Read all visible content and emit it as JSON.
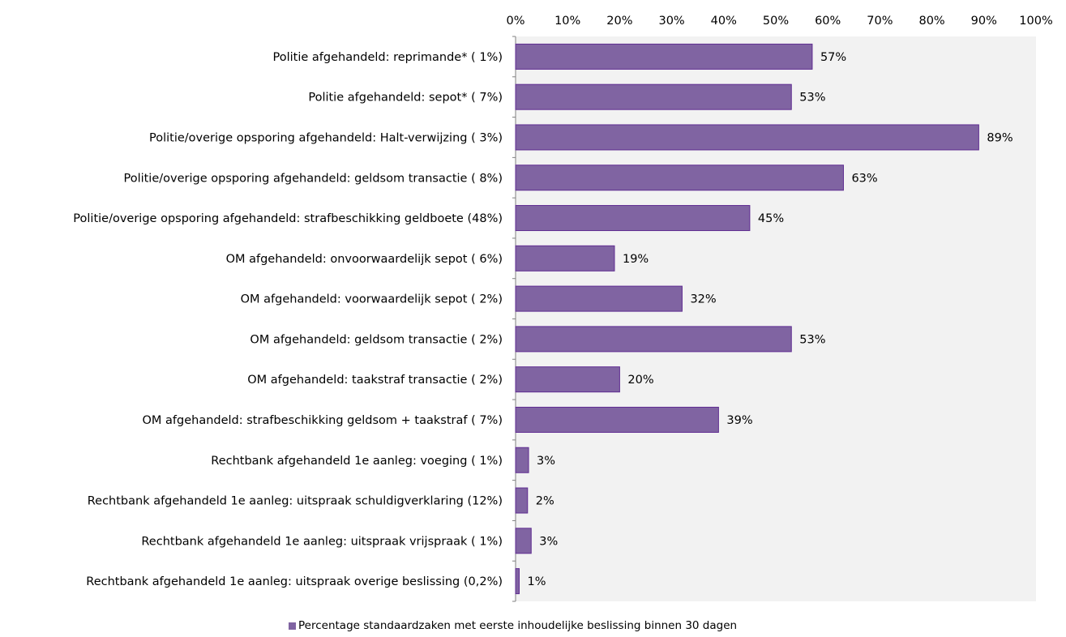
{
  "chart_data": {
    "type": "bar",
    "orientation": "horizontal",
    "title": "",
    "xlabel": "",
    "ylabel": "",
    "xlim": [
      0,
      100
    ],
    "x_ticks": [
      "0%",
      "10%",
      "20%",
      "30%",
      "40%",
      "50%",
      "60%",
      "70%",
      "80%",
      "90%",
      "100%"
    ],
    "x_axis_position": "top",
    "grid": false,
    "plot_background": "#f2f2f2",
    "bar_color": "#8064a2",
    "bar_border_color": "#5f2c91",
    "legend_position": "bottom",
    "categories": [
      "Politie afgehandeld: reprimande* ( 1%)",
      "Politie afgehandeld: sepot* ( 7%)",
      "Politie/overige opsporing afgehandeld: Halt-verwijzing ( 3%)",
      "Politie/overige opsporing afgehandeld: geldsom transactie ( 8%)",
      "Politie/overige opsporing afgehandeld: strafbeschikking geldboete (48%)",
      "OM afgehandeld: onvoorwaardelijk sepot ( 6%)",
      "OM afgehandeld: voorwaardelijk sepot ( 2%)",
      "OM afgehandeld: geldsom transactie ( 2%)",
      "OM afgehandeld: taakstraf transactie ( 2%)",
      "OM afgehandeld: strafbeschikking geldsom + taakstraf ( 7%)",
      "Rechtbank afgehandeld 1e aanleg: voeging ( 1%)",
      "Rechtbank afgehandeld 1e aanleg: uitspraak schuldigverklaring (12%)",
      "Rechtbank afgehandeld 1e aanleg: uitspraak vrijspraak ( 1%)",
      "Rechtbank afgehandeld 1e aanleg: uitspraak overige beslissing (0,2%)"
    ],
    "series": [
      {
        "name": "Percentage standaardzaken met eerste inhoudelijke beslissing binnen 30 dagen",
        "values": [
          57,
          53,
          89,
          63,
          45,
          19,
          32,
          53,
          20,
          39,
          2.5,
          2.3,
          3,
          0.7
        ],
        "data_labels": [
          "57%",
          "53%",
          "89%",
          "63%",
          "45%",
          "19%",
          "32%",
          "53%",
          "20%",
          "39%",
          "3%",
          "2%",
          "3%",
          "1%"
        ]
      }
    ]
  }
}
